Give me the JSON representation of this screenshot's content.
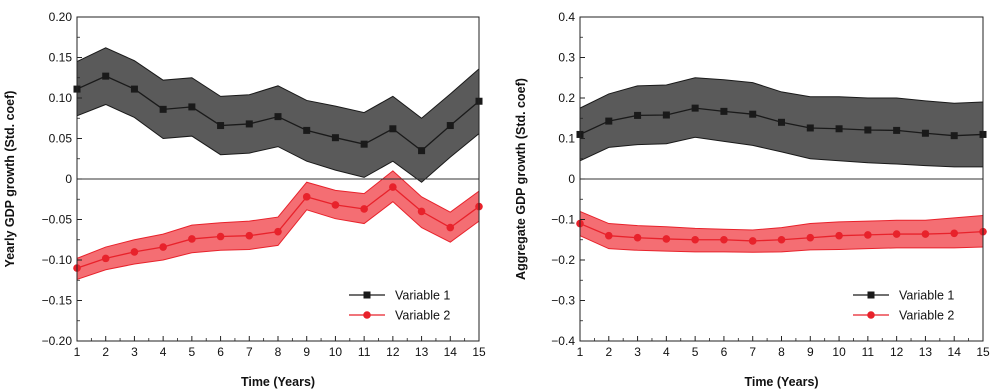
{
  "chart_data": [
    {
      "type": "line",
      "xlabel": "Time (Years)",
      "ylabel": "Yearly GDP growth (Std. coef)",
      "xlim": [
        1,
        15
      ],
      "ylim": [
        -0.2,
        0.2
      ],
      "x_ticks": [
        1,
        2,
        3,
        4,
        5,
        6,
        7,
        8,
        9,
        10,
        11,
        12,
        13,
        14,
        15
      ],
      "y_ticks": [
        {
          "value": 0.2,
          "label": "0.20"
        },
        {
          "value": 0.15,
          "label": "0.15"
        },
        {
          "value": 0.1,
          "label": "0.10"
        },
        {
          "value": 0.05,
          "label": "0.05"
        },
        {
          "value": 0,
          "label": "0"
        },
        {
          "value": -0.05,
          "label": "−0.05"
        },
        {
          "value": -0.1,
          "label": "−0.10"
        },
        {
          "value": -0.15,
          "label": "−0.15"
        },
        {
          "value": -0.2,
          "label": "−0.20"
        }
      ],
      "zero_line": true,
      "grid": false,
      "legend_position": "bottom-right",
      "x": [
        1,
        2,
        3,
        4,
        5,
        6,
        7,
        8,
        9,
        10,
        11,
        12,
        13,
        14,
        15
      ],
      "series": [
        {
          "name": "Variable 1",
          "marker": "square",
          "color": "#1a1a1a",
          "band_color": "#5a5a5a",
          "values": [
            0.111,
            0.127,
            0.111,
            0.086,
            0.089,
            0.066,
            0.068,
            0.077,
            0.06,
            0.051,
            0.043,
            0.062,
            0.035,
            0.066,
            0.096
          ],
          "upper": [
            0.145,
            0.162,
            0.146,
            0.122,
            0.125,
            0.102,
            0.104,
            0.115,
            0.097,
            0.09,
            0.082,
            0.102,
            0.075,
            0.105,
            0.136
          ],
          "lower": [
            0.078,
            0.092,
            0.076,
            0.05,
            0.053,
            0.03,
            0.032,
            0.04,
            0.022,
            0.011,
            0.002,
            0.022,
            -0.004,
            0.027,
            0.056
          ]
        },
        {
          "name": "Variable 2",
          "marker": "circle",
          "color": "#e8222b",
          "band_color": "#f46e73",
          "values": [
            -0.11,
            -0.098,
            -0.09,
            -0.084,
            -0.074,
            -0.071,
            -0.07,
            -0.065,
            -0.022,
            -0.032,
            -0.037,
            -0.01,
            -0.04,
            -0.06,
            -0.034
          ],
          "upper": [
            -0.098,
            -0.084,
            -0.075,
            -0.068,
            -0.057,
            -0.054,
            -0.052,
            -0.047,
            -0.004,
            -0.014,
            -0.018,
            0.01,
            -0.022,
            -0.041,
            -0.015
          ],
          "lower": [
            -0.124,
            -0.112,
            -0.105,
            -0.1,
            -0.091,
            -0.088,
            -0.087,
            -0.082,
            -0.038,
            -0.049,
            -0.055,
            -0.028,
            -0.06,
            -0.078,
            -0.052
          ]
        }
      ]
    },
    {
      "type": "line",
      "xlabel": "Time (Years)",
      "ylabel": "Aggregate GDP growth (Std. coef)",
      "xlim": [
        1,
        15
      ],
      "ylim": [
        -0.4,
        0.4
      ],
      "x_ticks": [
        1,
        2,
        3,
        4,
        5,
        6,
        7,
        8,
        9,
        10,
        11,
        12,
        13,
        14,
        15
      ],
      "y_ticks": [
        {
          "value": 0.4,
          "label": "0.4"
        },
        {
          "value": 0.3,
          "label": "0.3"
        },
        {
          "value": 0.2,
          "label": "0.2"
        },
        {
          "value": 0.1,
          "label": "0.1"
        },
        {
          "value": 0,
          "label": "0"
        },
        {
          "value": -0.1,
          "label": "−0.1"
        },
        {
          "value": -0.2,
          "label": "−0.2"
        },
        {
          "value": -0.3,
          "label": "−0.3"
        },
        {
          "value": -0.4,
          "label": "−0.4"
        }
      ],
      "zero_line": true,
      "grid": false,
      "legend_position": "bottom-right",
      "x": [
        1,
        2,
        3,
        4,
        5,
        6,
        7,
        8,
        9,
        10,
        11,
        12,
        13,
        14,
        15
      ],
      "series": [
        {
          "name": "Variable 1",
          "marker": "square",
          "color": "#1a1a1a",
          "band_color": "#5a5a5a",
          "values": [
            0.11,
            0.143,
            0.157,
            0.158,
            0.175,
            0.167,
            0.16,
            0.14,
            0.126,
            0.124,
            0.121,
            0.12,
            0.113,
            0.107,
            0.11
          ],
          "upper": [
            0.175,
            0.21,
            0.23,
            0.232,
            0.25,
            0.245,
            0.238,
            0.215,
            0.203,
            0.203,
            0.2,
            0.2,
            0.193,
            0.187,
            0.19
          ],
          "lower": [
            0.045,
            0.078,
            0.085,
            0.087,
            0.103,
            0.093,
            0.083,
            0.067,
            0.05,
            0.045,
            0.04,
            0.037,
            0.033,
            0.03,
            0.03
          ]
        },
        {
          "name": "Variable 2",
          "marker": "circle",
          "color": "#e8222b",
          "band_color": "#f46e73",
          "values": [
            -0.11,
            -0.14,
            -0.145,
            -0.148,
            -0.15,
            -0.15,
            -0.153,
            -0.15,
            -0.145,
            -0.14,
            -0.138,
            -0.136,
            -0.136,
            -0.134,
            -0.13
          ],
          "upper": [
            -0.08,
            -0.11,
            -0.115,
            -0.118,
            -0.122,
            -0.124,
            -0.126,
            -0.12,
            -0.11,
            -0.106,
            -0.104,
            -0.102,
            -0.102,
            -0.096,
            -0.09
          ],
          "lower": [
            -0.14,
            -0.172,
            -0.176,
            -0.178,
            -0.18,
            -0.18,
            -0.181,
            -0.18,
            -0.175,
            -0.174,
            -0.172,
            -0.17,
            -0.17,
            -0.17,
            -0.168
          ]
        }
      ]
    }
  ]
}
